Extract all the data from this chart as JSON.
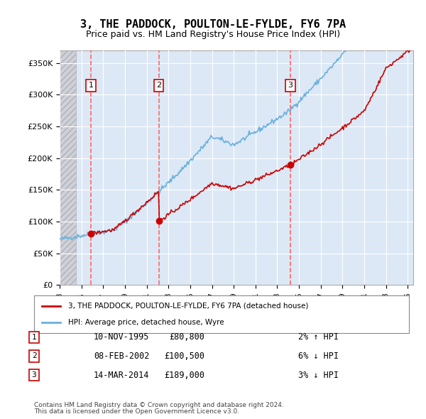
{
  "title": "3, THE PADDOCK, POULTON-LE-FYLDE, FY6 7PA",
  "subtitle": "Price paid vs. HM Land Registry's House Price Index (HPI)",
  "legend_line1": "3, THE PADDOCK, POULTON-LE-FYLDE, FY6 7PA (detached house)",
  "legend_line2": "HPI: Average price, detached house, Wyre",
  "footer1": "Contains HM Land Registry data © Crown copyright and database right 2024.",
  "footer2": "This data is licensed under the Open Government Licence v3.0.",
  "transactions": [
    {
      "num": 1,
      "date": "10-NOV-1995",
      "price": 80800,
      "pct": "2%",
      "dir": "↑"
    },
    {
      "num": 2,
      "date": "08-FEB-2002",
      "price": 100500,
      "pct": "6%",
      "dir": "↓"
    },
    {
      "num": 3,
      "date": "14-MAR-2014",
      "price": 189000,
      "pct": "3%",
      "dir": "↓"
    }
  ],
  "sale_dates": [
    1995.87,
    2002.11,
    2014.21
  ],
  "sale_prices": [
    80800,
    100500,
    189000
  ],
  "hpi_color": "#6ab0de",
  "price_color": "#cc0000",
  "vline_color": "#ff6666",
  "background_hatch": "#e8e8f0",
  "plot_background": "#dce8f5",
  "ylim": [
    0,
    370000
  ],
  "xlim_start": 1993.0,
  "xlim_end": 2025.5
}
